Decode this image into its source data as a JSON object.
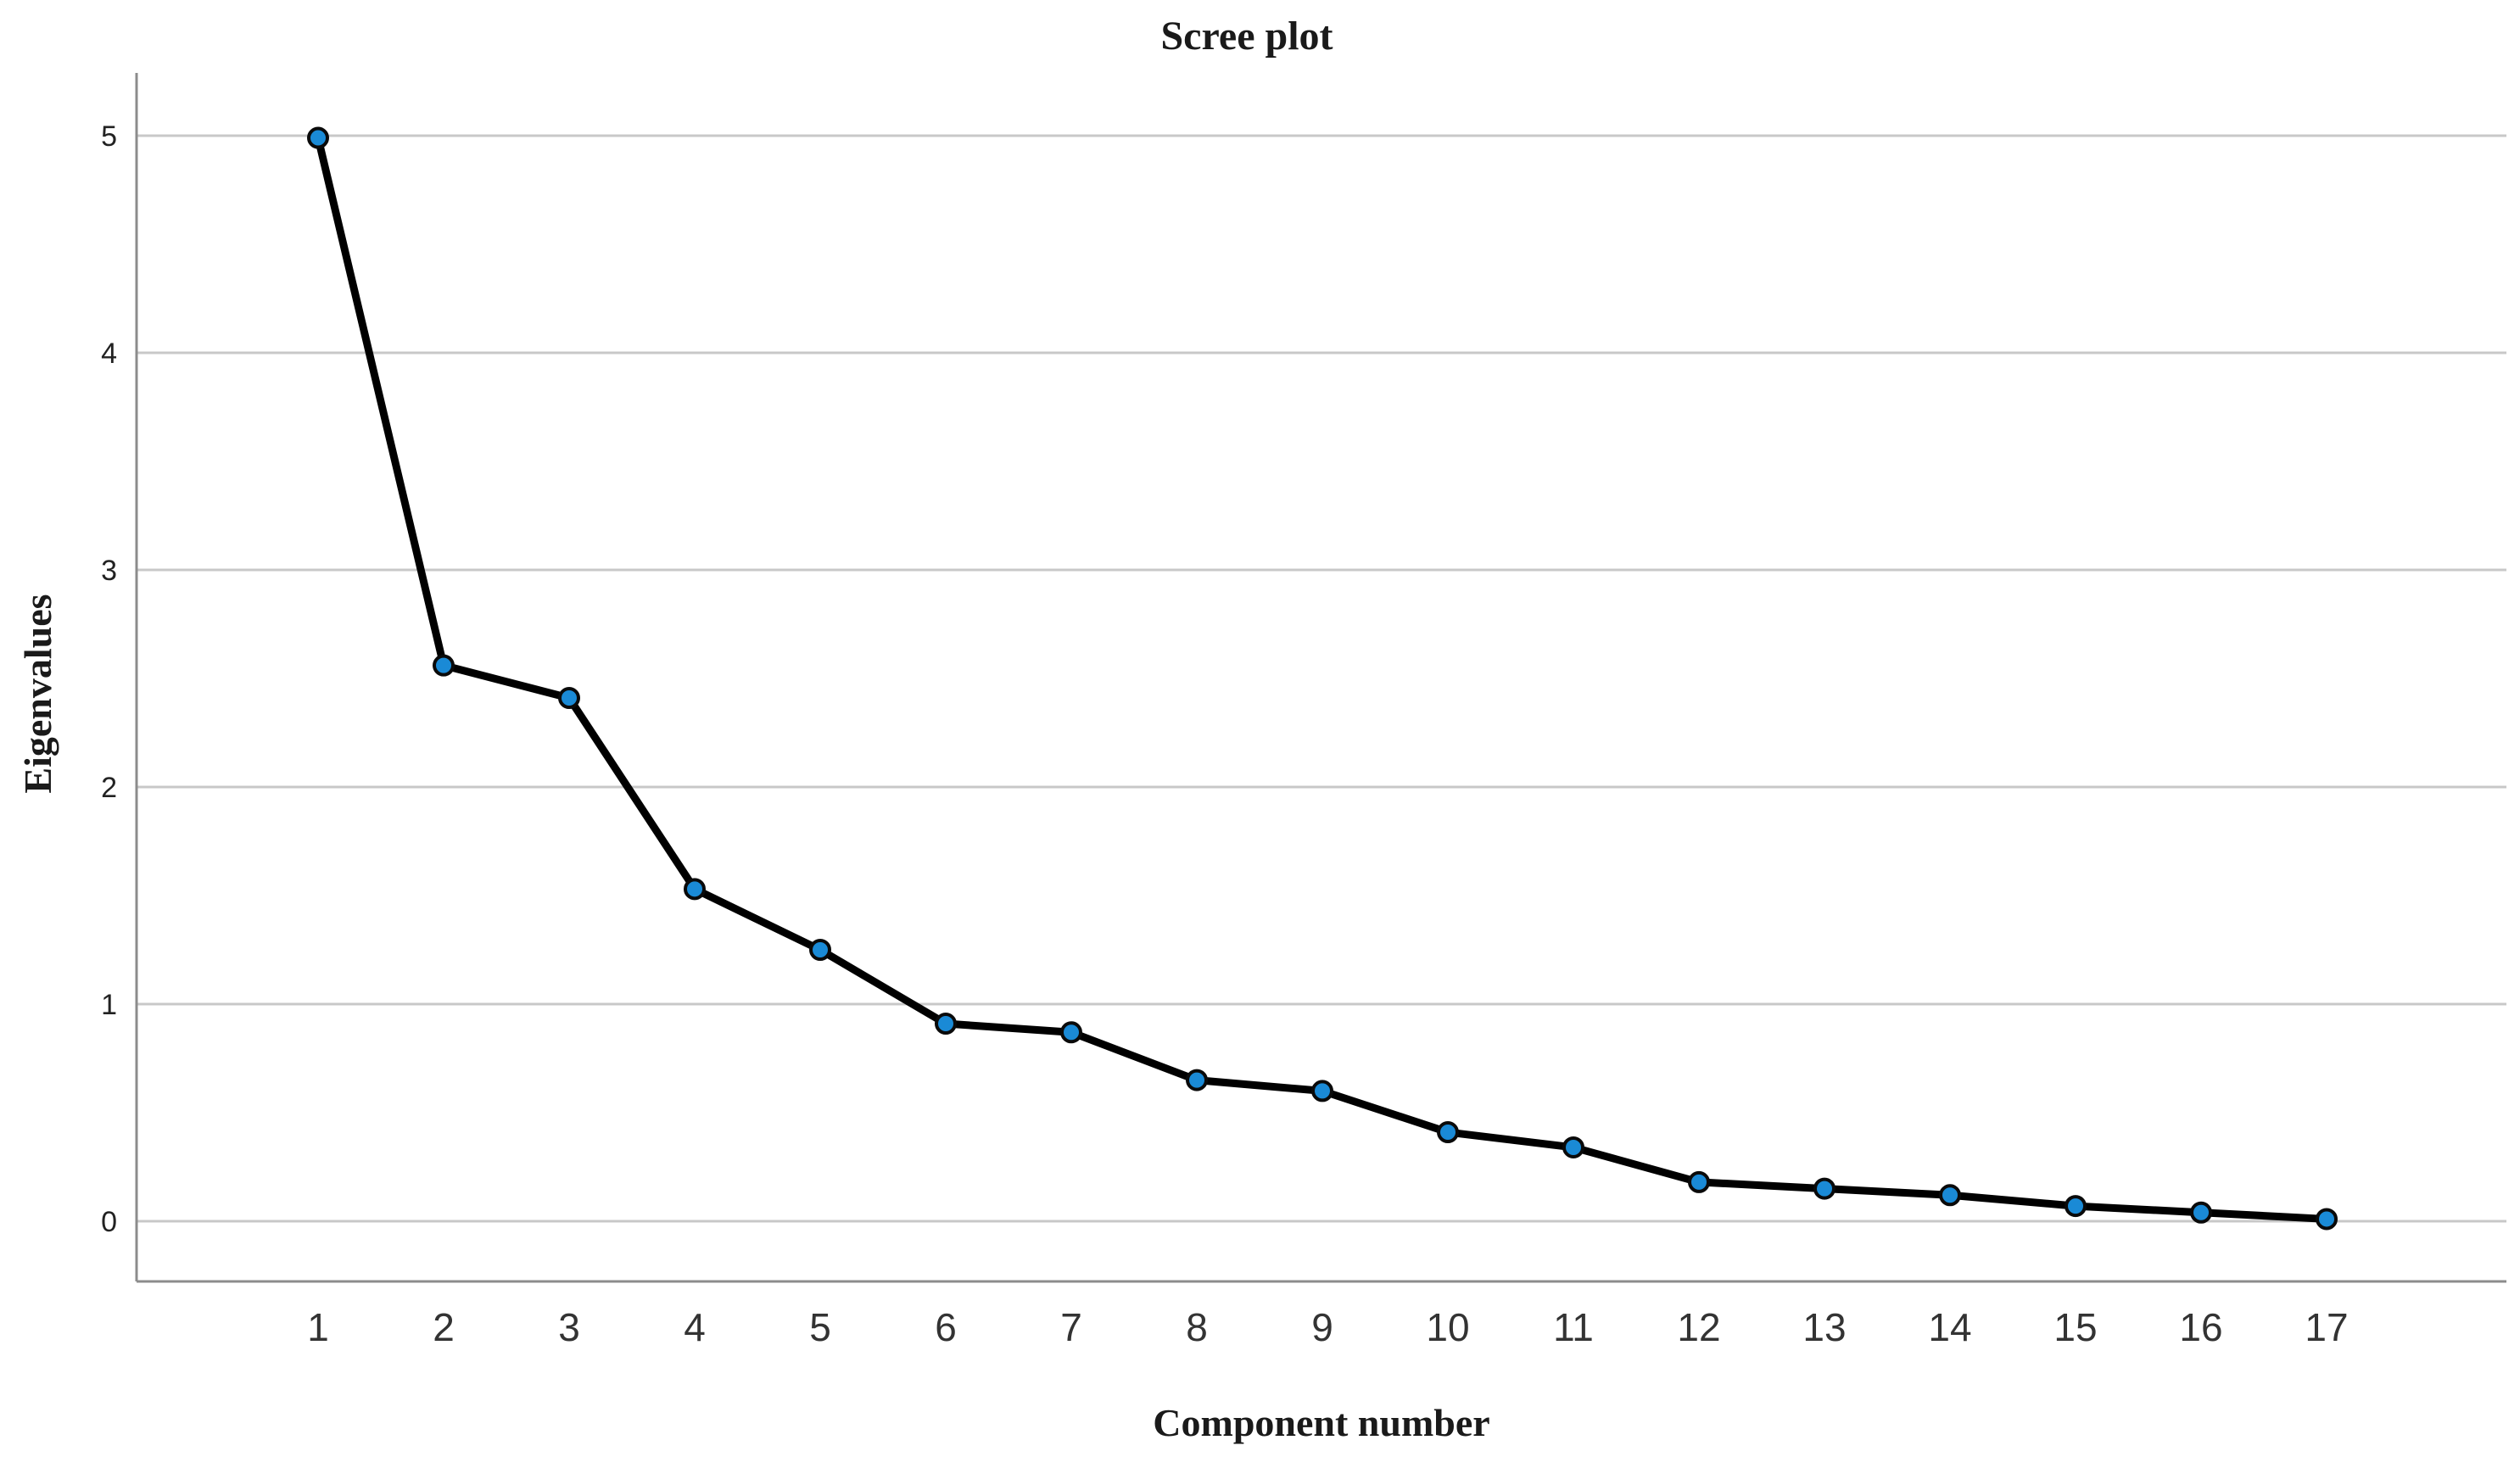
{
  "chart_data": {
    "type": "line",
    "title": "Scree plot",
    "xlabel": "Component number",
    "ylabel": "Eigenvalues",
    "categories": [
      "1",
      "2",
      "3",
      "4",
      "5",
      "6",
      "7",
      "8",
      "9",
      "10",
      "11",
      "12",
      "13",
      "14",
      "15",
      "16",
      "17"
    ],
    "values": [
      4.99,
      2.56,
      2.41,
      1.53,
      1.25,
      0.91,
      0.87,
      0.65,
      0.6,
      0.41,
      0.34,
      0.18,
      0.15,
      0.12,
      0.07,
      0.04,
      0.01
    ],
    "yticks": [
      "0",
      "1",
      "2",
      "3",
      "4",
      "5"
    ],
    "ylim": [
      -0.27,
      5.27
    ],
    "grid": "horizontal",
    "line_color": "#000000",
    "marker_color": "#1a8ad6"
  }
}
